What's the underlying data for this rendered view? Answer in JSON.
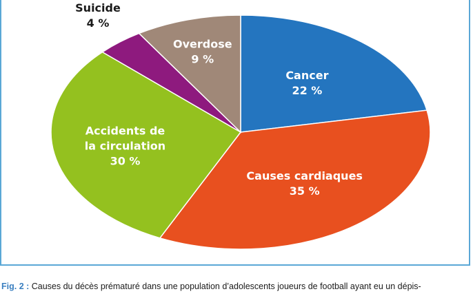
{
  "chart_data": {
    "type": "pie",
    "slices": [
      {
        "label": "Cancer",
        "value": 22,
        "value_label": "22 %",
        "color": "#2475bf",
        "text_color": "#ffffff"
      },
      {
        "label": "Causes cardiaques",
        "value": 35,
        "value_label": "35 %",
        "color": "#e8501f",
        "text_color": "#ffffff"
      },
      {
        "label": "Accidents de la circulation",
        "value": 30,
        "value_label": "30 %",
        "color": "#94c11f",
        "text_color": "#ffffff"
      },
      {
        "label": "Suicide",
        "value": 4,
        "value_label": "4 %",
        "color": "#8e1a7e",
        "text_color": "#1a1a1a"
      },
      {
        "label": "Overdose",
        "value": 9,
        "value_label": "9 %",
        "color": "#a08878",
        "text_color": "#ffffff"
      }
    ]
  },
  "caption": {
    "fig_label": "Fig. 2 :",
    "text": " Causes du décès prématuré dans une population d’adolescents joueurs de football ayant eu un dépis-"
  }
}
